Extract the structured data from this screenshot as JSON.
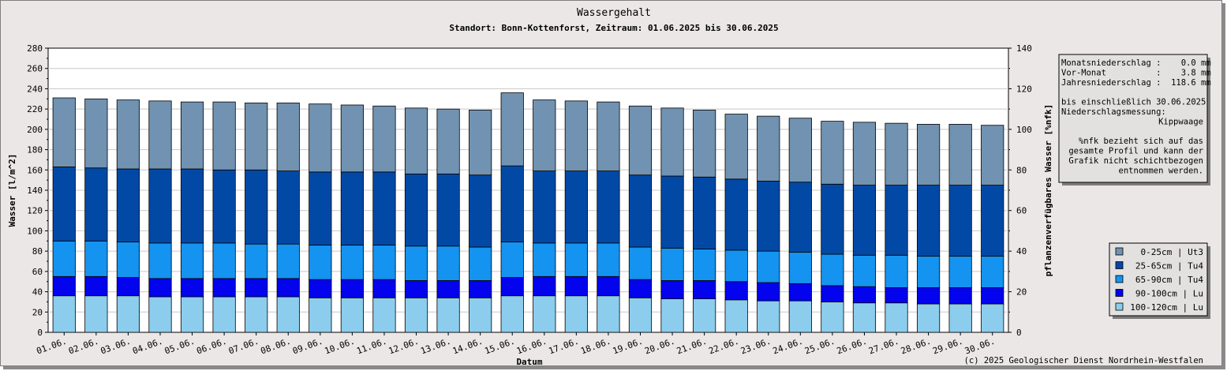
{
  "chart_data": {
    "type": "bar",
    "title": "Wassergehalt",
    "subtitle": "Standort: Bonn-Kottenforst, Zeitraum: 01.06.2025 bis 30.06.2025",
    "xlabel": "Datum",
    "ylabel": "Wasser [l/m^2]",
    "ylabel_right": "pflanzenverfügbares Wasser [%nfk]",
    "ylim": [
      0,
      280
    ],
    "yticks": [
      0,
      20,
      40,
      60,
      80,
      100,
      120,
      140,
      160,
      180,
      200,
      220,
      240,
      260,
      280
    ],
    "ylim_right": [
      0,
      140
    ],
    "yticks_right": [
      0,
      20,
      40,
      60,
      80,
      100,
      120,
      140
    ],
    "grid": true,
    "stacked": true,
    "legend_position": "right",
    "categories": [
      "01.06.",
      "02.06.",
      "03.06.",
      "04.06.",
      "05.06.",
      "06.06.",
      "07.06.",
      "08.06.",
      "09.06.",
      "10.06.",
      "11.06.",
      "12.06.",
      "13.06.",
      "14.06.",
      "15.06.",
      "16.06.",
      "17.06.",
      "18.06.",
      "19.06.",
      "20.06.",
      "21.06.",
      "22.06.",
      "23.06.",
      "24.06.",
      "25.06.",
      "26.06.",
      "27.06.",
      "28.06.",
      "29.06.",
      "30.06."
    ],
    "series": [
      {
        "name": "100-120cm | Lu",
        "color": "#8ccdee",
        "values": [
          36,
          36,
          36,
          35,
          35,
          35,
          35,
          35,
          34,
          34,
          34,
          34,
          34,
          34,
          36,
          36,
          36,
          36,
          34,
          33,
          33,
          32,
          31,
          31,
          30,
          29,
          29,
          28,
          28,
          28
        ]
      },
      {
        "name": "90-100cm | Lu",
        "color": "#0303ee",
        "values": [
          19,
          19,
          18,
          18,
          18,
          18,
          18,
          18,
          18,
          18,
          18,
          17,
          17,
          17,
          18,
          19,
          19,
          19,
          18,
          18,
          18,
          18,
          18,
          17,
          16,
          16,
          15,
          16,
          16,
          16
        ]
      },
      {
        "name": "65-90cm | Tu4",
        "color": "#1593f0",
        "values": [
          35,
          35,
          35,
          35,
          35,
          35,
          34,
          34,
          34,
          34,
          34,
          34,
          34,
          33,
          35,
          33,
          33,
          33,
          32,
          32,
          31,
          31,
          31,
          31,
          31,
          31,
          32,
          31,
          31,
          31
        ]
      },
      {
        "name": "25-65cm | Tu4",
        "color": "#0249a5",
        "values": [
          73,
          72,
          72,
          73,
          73,
          72,
          73,
          72,
          72,
          72,
          72,
          71,
          71,
          71,
          75,
          71,
          71,
          71,
          71,
          71,
          71,
          70,
          69,
          69,
          69,
          69,
          69,
          70,
          70,
          70
        ]
      },
      {
        "name": "0-25cm | Ut3",
        "color": "#7192b1",
        "values": [
          68,
          68,
          68,
          67,
          66,
          67,
          66,
          67,
          67,
          66,
          65,
          65,
          64,
          64,
          72,
          70,
          69,
          68,
          68,
          67,
          66,
          64,
          64,
          63,
          62,
          62,
          61,
          60,
          60,
          59
        ]
      }
    ]
  },
  "info_box": {
    "lines": [
      "Monatsniederschlag :    0.0 mm",
      "Vor-Monat          :    3.8 mm",
      "Jahresniederschlag :  118.6 mm",
      "",
      "bis einschließlich 30.06.2025",
      "Niederschlagsmessung:",
      "Kippwaage",
      "",
      "%nfk bezieht sich auf das",
      "gesamte Profil und kann der",
      "Grafik nicht schichtbezogen",
      "entnommen werden."
    ],
    "right_aligned_lines": [
      6,
      8,
      9,
      10,
      11
    ]
  },
  "legend_order": [
    "0-25cm | Ut3",
    "25-65cm | Tu4",
    "65-90cm | Tu4",
    "90-100cm | Lu",
    "100-120cm | Lu"
  ],
  "footer": {
    "copyright": "(c) 2025 Geologischer Dienst Nordrhein-Westfalen"
  }
}
